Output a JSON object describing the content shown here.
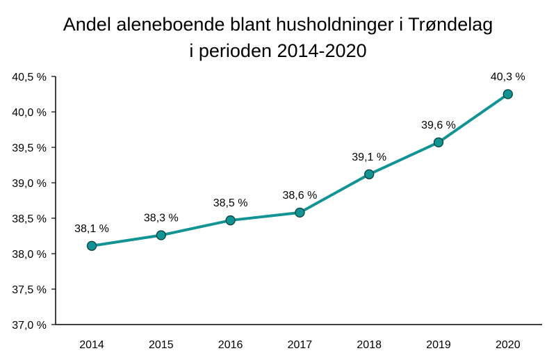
{
  "chart_data": {
    "type": "line",
    "title_lines": [
      "Andel aleneboende  blant husholdninger  i Trøndelag",
      "i perioden 2014-2020"
    ],
    "categories": [
      "2014",
      "2015",
      "2016",
      "2017",
      "2018",
      "2019",
      "2020"
    ],
    "series": [
      {
        "name": "Andel aleneboende",
        "values": [
          38.11,
          38.26,
          38.47,
          38.58,
          39.12,
          39.57,
          40.25
        ],
        "data_labels": [
          "38,1 %",
          "38,3 %",
          "38,5 %",
          "38,6 %",
          "39,1 %",
          "39,6 %",
          "40,3 %"
        ]
      }
    ],
    "xlabel": "",
    "ylabel": "",
    "ylim": [
      37.0,
      40.5
    ],
    "y_ticks": [
      37.0,
      37.5,
      38.0,
      38.5,
      39.0,
      39.5,
      40.0,
      40.5
    ],
    "y_tick_labels": [
      "37,0 %",
      "37,5 %",
      "38,0 %",
      "38,5 %",
      "39,0 %",
      "39,5 %",
      "40,0 %",
      "40,5 %"
    ],
    "grid": false,
    "legend": "none",
    "colors": {
      "line": "#139494",
      "marker_fill": "#139494",
      "marker_stroke": "#0a3d3d",
      "axis": "#000000"
    }
  }
}
